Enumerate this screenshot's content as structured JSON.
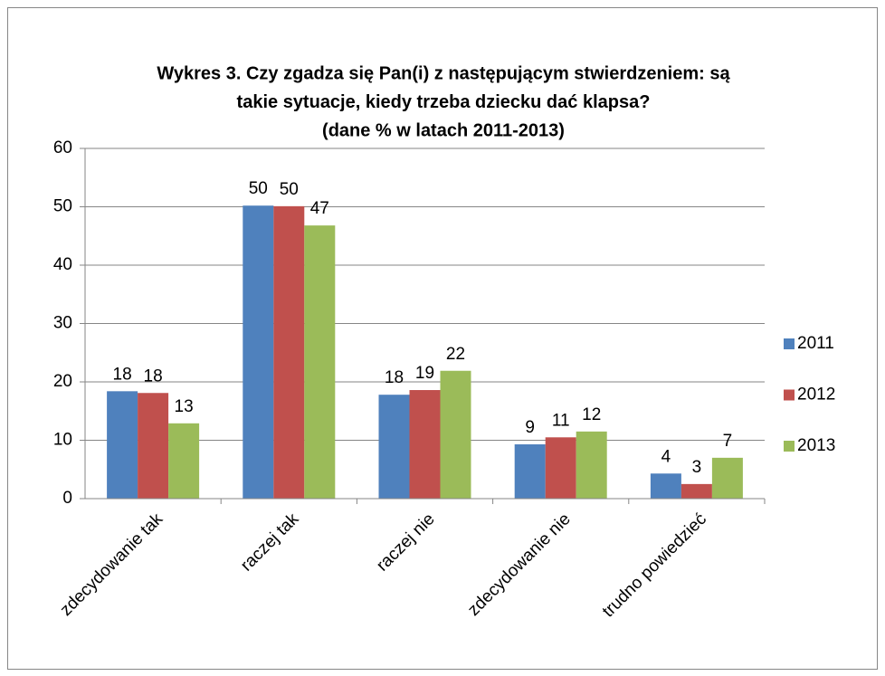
{
  "chart_data": {
    "type": "bar",
    "title": [
      "Wykres 3. Czy zgadza się Pan(i) z następującym stwierdzeniem: są",
      "takie sytuacje, kiedy trzeba dziecku dać klapsa?",
      "(dane % w latach 2011-2013)"
    ],
    "categories": [
      "zdecydowanie tak",
      "raczej tak",
      "raczej nie",
      "zdecydowanie nie",
      "trudno powiedzieć"
    ],
    "series": [
      {
        "name": "2011",
        "color": "#4f81bd",
        "values": [
          18.4,
          50.2,
          17.8,
          9.3,
          4.3
        ],
        "value_labels": [
          "18",
          "50",
          "18",
          "9",
          "4"
        ]
      },
      {
        "name": "2012",
        "color": "#c0504d",
        "values": [
          18.1,
          50.1,
          18.6,
          10.5,
          2.5
        ],
        "value_labels": [
          "18",
          "50",
          "19",
          "11",
          "3"
        ]
      },
      {
        "name": "2013",
        "color": "#9bbb59",
        "values": [
          12.9,
          46.8,
          21.9,
          11.5,
          7.0
        ],
        "value_labels": [
          "13",
          "47",
          "22",
          "12",
          "7"
        ]
      }
    ],
    "ylim": [
      0,
      60
    ],
    "yticks": [
      0,
      10,
      20,
      30,
      40,
      50,
      60
    ],
    "grid": true,
    "legend": "right"
  }
}
